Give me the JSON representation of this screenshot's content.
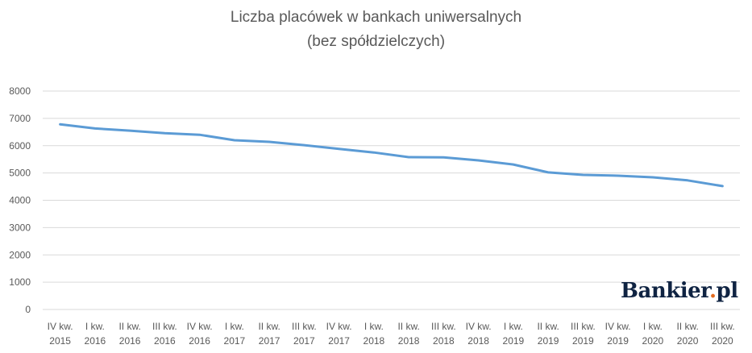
{
  "chart_data": {
    "type": "line",
    "title": "Liczba placówek w bankach uniwersalnych",
    "subtitle": "(bez spółdzielczych)",
    "categories": [
      [
        "IV kw.",
        "2015"
      ],
      [
        "I kw.",
        "2016"
      ],
      [
        "II kw.",
        "2016"
      ],
      [
        "III kw.",
        "2016"
      ],
      [
        "IV kw.",
        "2016"
      ],
      [
        "I kw.",
        "2017"
      ],
      [
        "II kw.",
        "2017"
      ],
      [
        "III kw.",
        "2017"
      ],
      [
        "IV kw.",
        "2017"
      ],
      [
        "I kw.",
        "2018"
      ],
      [
        "II kw.",
        "2018"
      ],
      [
        "III kw.",
        "2018"
      ],
      [
        "IV kw.",
        "2018"
      ],
      [
        "I kw.",
        "2019"
      ],
      [
        "II kw.",
        "2019"
      ],
      [
        "III kw.",
        "2019"
      ],
      [
        "IV kw.",
        "2019"
      ],
      [
        "I kw.",
        "2020"
      ],
      [
        "II kw.",
        "2020"
      ],
      [
        "III kw.",
        "2020"
      ]
    ],
    "series": [
      {
        "values": [
          6780,
          6630,
          6550,
          6460,
          6400,
          6200,
          6140,
          6020,
          5880,
          5750,
          5580,
          5570,
          5460,
          5310,
          5020,
          4930,
          4900,
          4840,
          4730,
          4520
        ]
      }
    ],
    "ylim": [
      0,
      8000
    ],
    "yticks": [
      0,
      1000,
      2000,
      3000,
      4000,
      5000,
      6000,
      7000,
      8000
    ],
    "grid": true,
    "legend": "none",
    "line_color": "#5b9bd5",
    "grid_color": "#d9d9d9",
    "text_color": "#595959"
  },
  "watermark": {
    "brand": "Bankier",
    "dot": ".",
    "suffix": "pl",
    "brand_color": "#0f2342",
    "dot_color": "#e36b1f"
  }
}
